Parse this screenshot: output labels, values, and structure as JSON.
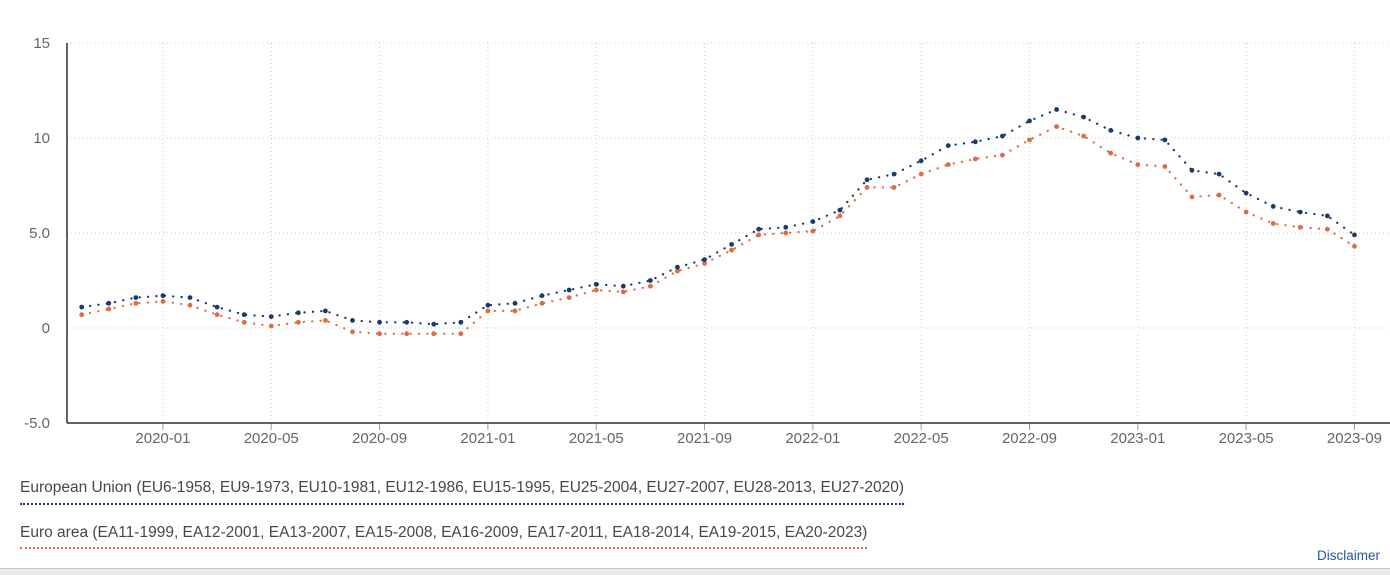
{
  "chart_data": {
    "type": "line",
    "style": "dotted-with-markers",
    "x": [
      "2019-10",
      "2019-11",
      "2019-12",
      "2020-01",
      "2020-02",
      "2020-03",
      "2020-04",
      "2020-05",
      "2020-06",
      "2020-07",
      "2020-08",
      "2020-09",
      "2020-10",
      "2020-11",
      "2020-12",
      "2021-01",
      "2021-02",
      "2021-03",
      "2021-04",
      "2021-05",
      "2021-06",
      "2021-07",
      "2021-08",
      "2021-09",
      "2021-10",
      "2021-11",
      "2021-12",
      "2022-01",
      "2022-02",
      "2022-03",
      "2022-04",
      "2022-05",
      "2022-06",
      "2022-07",
      "2022-08",
      "2022-09",
      "2022-10",
      "2022-11",
      "2022-12",
      "2023-01",
      "2023-02",
      "2023-03",
      "2023-04",
      "2023-05",
      "2023-06",
      "2023-07",
      "2023-08",
      "2023-09"
    ],
    "series": [
      {
        "name": "Euro area",
        "color": "#dd6b43",
        "values": [
          0.7,
          1.0,
          1.3,
          1.4,
          1.2,
          0.7,
          0.3,
          0.1,
          0.3,
          0.4,
          -0.2,
          -0.3,
          -0.3,
          -0.3,
          -0.3,
          0.9,
          0.9,
          1.3,
          1.6,
          2.0,
          1.9,
          2.2,
          3.0,
          3.4,
          4.1,
          4.9,
          5.0,
          5.1,
          5.9,
          7.4,
          7.4,
          8.1,
          8.6,
          8.9,
          9.1,
          9.9,
          10.6,
          10.1,
          9.2,
          8.6,
          8.5,
          6.9,
          7.0,
          6.1,
          5.5,
          5.3,
          5.2,
          4.3
        ]
      },
      {
        "name": "European Union",
        "color": "#1a3a6b",
        "values": [
          1.1,
          1.3,
          1.6,
          1.7,
          1.6,
          1.1,
          0.7,
          0.6,
          0.8,
          0.9,
          0.4,
          0.3,
          0.3,
          0.2,
          0.3,
          1.2,
          1.3,
          1.7,
          2.0,
          2.3,
          2.2,
          2.5,
          3.2,
          3.6,
          4.4,
          5.2,
          5.3,
          5.6,
          6.2,
          7.8,
          8.1,
          8.8,
          9.6,
          9.8,
          10.1,
          10.9,
          11.5,
          11.1,
          10.4,
          10.0,
          9.9,
          8.3,
          8.1,
          7.1,
          6.4,
          6.1,
          5.9,
          4.9
        ]
      }
    ],
    "yticks": [
      {
        "label": "15",
        "value": 15
      },
      {
        "label": "10",
        "value": 10
      },
      {
        "label": "5.0",
        "value": 5
      },
      {
        "label": "0",
        "value": 0
      },
      {
        "label": "-5.0",
        "value": -5
      }
    ],
    "xticks": [
      {
        "label": "2020-01",
        "i": 3
      },
      {
        "label": "2020-05",
        "i": 7
      },
      {
        "label": "2020-09",
        "i": 11
      },
      {
        "label": "2021-01",
        "i": 15
      },
      {
        "label": "2021-05",
        "i": 19
      },
      {
        "label": "2021-09",
        "i": 23
      },
      {
        "label": "2022-01",
        "i": 27
      },
      {
        "label": "2022-05",
        "i": 31
      },
      {
        "label": "2022-09",
        "i": 35
      },
      {
        "label": "2023-01",
        "i": 39
      },
      {
        "label": "2023-05",
        "i": 43
      },
      {
        "label": "2023-09",
        "i": 47
      }
    ],
    "ylim": [
      -5,
      15
    ],
    "grid": true,
    "legend_position": "bottom",
    "grid_color": "#cccccc",
    "axis_color": "#2f2f2f",
    "tick_color": "#999999",
    "label_color": "#666666"
  },
  "legend": {
    "items": [
      {
        "label": "European Union (EU6-1958, EU9-1973, EU10-1981, EU12-1986, EU15-1995, EU25-2004, EU27-2007, EU28-2013, EU27-2020)",
        "color": "#1a3a6b"
      },
      {
        "label": "Euro area (EA11-1999, EA12-2001, EA13-2007, EA15-2008, EA16-2009, EA17-2011, EA18-2014, EA19-2015, EA20-2023)",
        "color": "#dd6b43"
      }
    ]
  },
  "footer": {
    "disclaimer_label": "Disclaimer"
  }
}
